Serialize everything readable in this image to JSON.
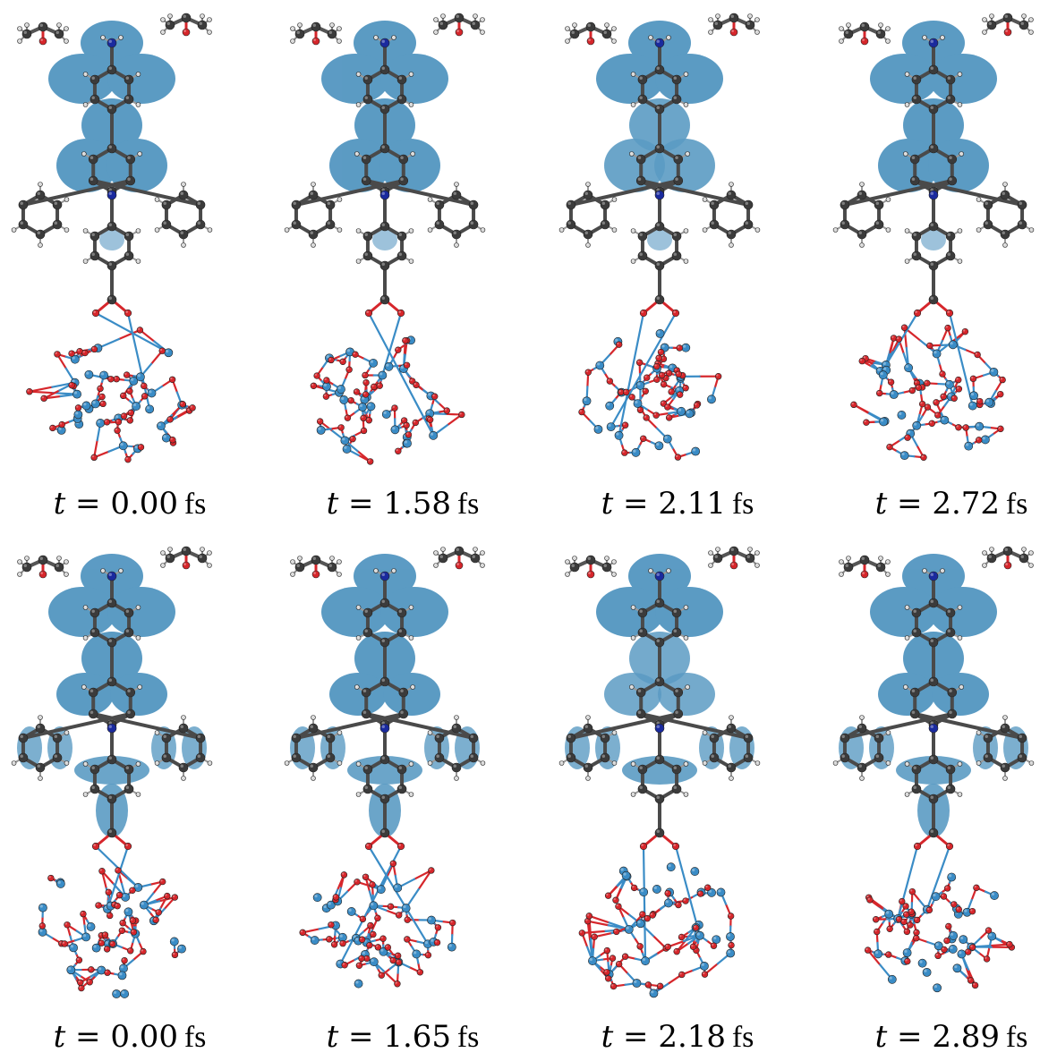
{
  "figure": {
    "panels": [
      {
        "time_label": "t",
        "equals": "=",
        "time_value": "0.00",
        "unit": "fs"
      },
      {
        "time_label": "t",
        "equals": "=",
        "time_value": "1.58",
        "unit": "fs"
      },
      {
        "time_label": "t",
        "equals": "=",
        "time_value": "2.11",
        "unit": "fs"
      },
      {
        "time_label": "t",
        "equals": "=",
        "time_value": "2.72",
        "unit": "fs"
      },
      {
        "time_label": "t",
        "equals": "=",
        "time_value": "0.00",
        "unit": "fs"
      },
      {
        "time_label": "t",
        "equals": "=",
        "time_value": "1.65",
        "unit": "fs"
      },
      {
        "time_label": "t",
        "equals": "=",
        "time_value": "2.18",
        "unit": "fs"
      },
      {
        "time_label": "t",
        "equals": "=",
        "time_value": "2.89",
        "unit": "fs"
      }
    ],
    "colors": {
      "density_isosurface": "#2e7fb3",
      "carbon_atom": "#3b3b3b",
      "nitrogen_atom": "#1a2a9e",
      "hydrogen_atom": "#d9d9d9",
      "oxygen_atom": "#d6262b",
      "titanium_atom": "#3a8cc6"
    }
  }
}
